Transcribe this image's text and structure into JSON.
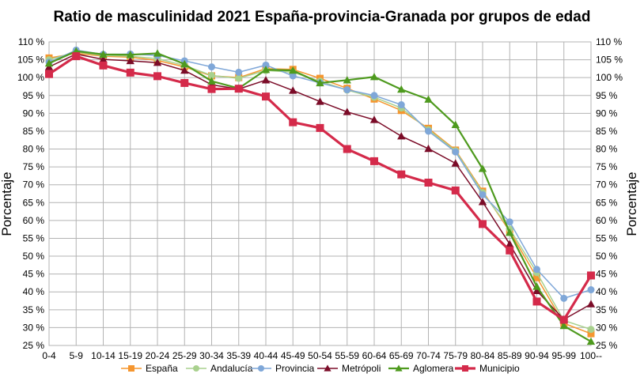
{
  "chart_data": {
    "type": "line",
    "title": "Ratio de masculinidad 2021 España-provincia-Granada por grupos de edad",
    "ylabel_left": "Porcentaje",
    "ylabel_right": "Porcentaje",
    "xlabel": "",
    "ylim": [
      25,
      110
    ],
    "y_step": 5,
    "y_tick_suffix": " %",
    "grid": true,
    "legend_position": "bottom",
    "categories": [
      "0-4",
      "5-9",
      "10-14",
      "15-19",
      "20-24",
      "25-29",
      "30-34",
      "35-39",
      "40-44",
      "45-49",
      "50-54",
      "55-59",
      "60-64",
      "65-69",
      "70-74",
      "75-79",
      "80-84",
      "85-89",
      "90-94",
      "95-99",
      "100--"
    ],
    "series": [
      {
        "name": "España",
        "color": "#f5962f",
        "marker": "square",
        "values": [
          105.5,
          106.8,
          106.0,
          105.7,
          104.8,
          103.0,
          100.5,
          100.0,
          102.5,
          102.3,
          99.8,
          97.0,
          94.0,
          90.8,
          85.8,
          79.7,
          68.2,
          57.0,
          44.0,
          31.2,
          28.3
        ]
      },
      {
        "name": "Andalucía",
        "color": "#a9d18e",
        "marker": "circle",
        "values": [
          105.0,
          107.2,
          106.2,
          106.0,
          105.3,
          103.4,
          100.6,
          99.8,
          102.0,
          101.5,
          99.0,
          96.5,
          94.5,
          91.5,
          85.4,
          79.5,
          67.8,
          57.6,
          45.4,
          32.0,
          29.5
        ]
      },
      {
        "name": "Provincia",
        "color": "#7fa7d8",
        "marker": "circle",
        "values": [
          104.3,
          107.7,
          106.5,
          106.6,
          106.2,
          104.7,
          103.0,
          101.5,
          103.5,
          100.5,
          98.5,
          96.6,
          95.0,
          92.4,
          85.0,
          79.2,
          67.2,
          59.6,
          46.3,
          38.2,
          40.6
        ]
      },
      {
        "name": "Metrópoli",
        "color": "#7b0c28",
        "marker": "triangle",
        "values": [
          103.0,
          106.6,
          105.1,
          104.7,
          104.2,
          102.0,
          98.0,
          96.8,
          99.3,
          96.4,
          93.3,
          90.4,
          88.2,
          83.6,
          80.1,
          76.0,
          65.2,
          53.4,
          40.3,
          32.3,
          36.6
        ]
      },
      {
        "name": "Aglomera",
        "color": "#4e9a1e",
        "marker": "triangle",
        "values": [
          104.0,
          107.4,
          106.5,
          106.4,
          106.8,
          103.8,
          99.0,
          97.0,
          102.2,
          102.0,
          98.5,
          99.3,
          100.2,
          96.7,
          93.9,
          86.8,
          74.5,
          56.6,
          41.5,
          30.5,
          26.1
        ]
      },
      {
        "name": "Municipio",
        "color": "#d42a4a",
        "marker": "square",
        "values": [
          101.0,
          106.0,
          103.4,
          101.4,
          100.4,
          98.5,
          96.8,
          96.9,
          94.7,
          87.5,
          85.9,
          80.0,
          76.6,
          72.9,
          70.6,
          68.4,
          59.0,
          51.6,
          37.3,
          32.2,
          44.6
        ]
      }
    ]
  }
}
